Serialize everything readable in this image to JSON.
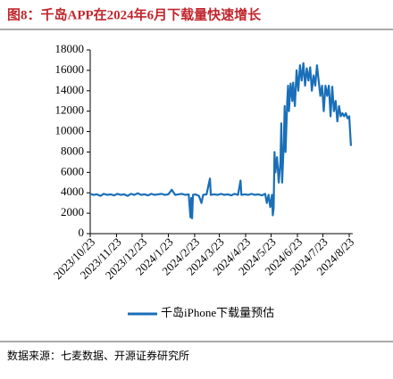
{
  "chart_data": {
    "type": "line",
    "title": "图8：千岛APP在2024年6月下载量快速增长",
    "source": "数据来源：七麦数据、开源证券研究所",
    "x": [
      "2023/10/23",
      "2023/10/27",
      "2023/10/31",
      "2023/11/4",
      "2023/11/8",
      "2023/11/12",
      "2023/11/16",
      "2023/11/20",
      "2023/11/24",
      "2023/11/28",
      "2023/12/2",
      "2023/12/6",
      "2023/12/10",
      "2023/12/14",
      "2023/12/18",
      "2023/12/22",
      "2023/12/26",
      "2023/12/30",
      "2024/1/3",
      "2024/1/7",
      "2024/1/11",
      "2024/1/15",
      "2024/1/19",
      "2024/1/23",
      "2024/1/27",
      "2024/1/31",
      "2024/2/4",
      "2024/2/8",
      "2024/2/12",
      "2024/2/16",
      "2024/2/18",
      "2024/2/19",
      "2024/2/20",
      "2024/2/21",
      "2024/2/24",
      "2024/2/28",
      "2024/3/2",
      "2024/3/4",
      "2024/3/8",
      "2024/3/12",
      "2024/3/13",
      "2024/3/17",
      "2024/3/21",
      "2024/3/25",
      "2024/3/29",
      "2024/4/2",
      "2024/4/6",
      "2024/4/10",
      "2024/4/14",
      "2024/4/17",
      "2024/4/18",
      "2024/4/22",
      "2024/4/26",
      "2024/4/30",
      "2024/5/4",
      "2024/5/8",
      "2024/5/12",
      "2024/5/16",
      "2024/5/18",
      "2024/5/20",
      "2024/5/22",
      "2024/5/24",
      "2024/5/25",
      "2024/5/26",
      "2024/5/27",
      "2024/5/28",
      "2024/5/30",
      "2024/6/1",
      "2024/6/3",
      "2024/6/4",
      "2024/6/5",
      "2024/6/7",
      "2024/6/8",
      "2024/6/9",
      "2024/6/11",
      "2024/6/12",
      "2024/6/13",
      "2024/6/15",
      "2024/6/17",
      "2024/6/18",
      "2024/6/20",
      "2024/6/22",
      "2024/6/24",
      "2024/6/26",
      "2024/6/28",
      "2024/6/30",
      "2024/7/2",
      "2024/7/4",
      "2024/7/6",
      "2024/7/8",
      "2024/7/10",
      "2024/7/12",
      "2024/7/14",
      "2024/7/16",
      "2024/7/18",
      "2024/7/20",
      "2024/7/22",
      "2024/7/24",
      "2024/7/26",
      "2024/7/28",
      "2024/7/30",
      "2024/8/1",
      "2024/8/3",
      "2024/8/5",
      "2024/8/7",
      "2024/8/9",
      "2024/8/11",
      "2024/8/13",
      "2024/8/15",
      "2024/8/17",
      "2024/8/19",
      "2024/8/21",
      "2024/8/23",
      "2024/8/25"
    ],
    "series": [
      {
        "name": "千岛iPhone下载量预估",
        "color": "#1a6fb8",
        "values": [
          3900,
          3800,
          3850,
          3700,
          3900,
          3800,
          3850,
          3750,
          3900,
          3800,
          3850,
          3700,
          3900,
          3800,
          3950,
          3800,
          3850,
          3750,
          3900,
          3800,
          3850,
          3900,
          3800,
          3850,
          4300,
          3800,
          3850,
          3900,
          3800,
          3850,
          1600,
          3500,
          1500,
          3800,
          3850,
          3700,
          3000,
          3800,
          3850,
          5400,
          3800,
          3850,
          3800,
          3900,
          3800,
          3850,
          3750,
          3900,
          3800,
          5200,
          3800,
          3850,
          3800,
          3900,
          3800,
          3850,
          3750,
          3900,
          3000,
          3800,
          2600,
          3800,
          1800,
          2500,
          8000,
          6000,
          7500,
          5000,
          7000,
          10800,
          5000,
          9000,
          12500,
          8000,
          13000,
          14500,
          12000,
          14700,
          13000,
          14800,
          12500,
          16000,
          14000,
          16500,
          15000,
          16700,
          14500,
          16200,
          15000,
          16300,
          14000,
          15500,
          14500,
          16500,
          15000,
          13500,
          14500,
          12000,
          14500,
          13500,
          14500,
          11500,
          14400,
          12000,
          13000,
          11000,
          12500,
          11500,
          11800,
          11500,
          11800,
          11300,
          11500,
          8600
        ]
      }
    ],
    "xticks": [
      "2023/10/23",
      "2023/11/23",
      "2023/12/23",
      "2024/1/23",
      "2024/2/23",
      "2024/3/23",
      "2024/4/23",
      "2024/5/23",
      "2024/6/23",
      "2024/7/23",
      "2024/8/23"
    ],
    "ylim": [
      0,
      18000
    ],
    "yticks": [
      0,
      2000,
      4000,
      6000,
      8000,
      10000,
      12000,
      14000,
      16000,
      18000
    ],
    "grid": false
  }
}
